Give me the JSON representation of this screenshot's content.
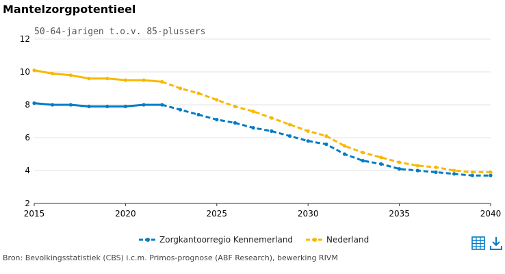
{
  "page": {
    "title": "Mantelzorgpotentieel",
    "source": "Bron: Bevolkingsstatistiek (CBS) i.c.m. Primos-prognose (ABF Research), bewerking RIVM",
    "icons": {
      "table": "table-icon",
      "download": "download-icon"
    },
    "accent_color": "#007bc7"
  },
  "chart_data": {
    "type": "line",
    "title": "",
    "subtitle": "50-64-jarigen t.o.v. 85-plussers",
    "xlabel": "",
    "ylabel": "",
    "xlim": [
      2015,
      2040
    ],
    "ylim": [
      2,
      12
    ],
    "x_ticks": [
      2015,
      2020,
      2025,
      2030,
      2035,
      2040
    ],
    "y_ticks": [
      2,
      4,
      6,
      8,
      10,
      12
    ],
    "grid": "horizontal",
    "legend_position": "bottom",
    "x": [
      2015,
      2016,
      2017,
      2018,
      2019,
      2020,
      2021,
      2022,
      2023,
      2024,
      2025,
      2026,
      2027,
      2028,
      2029,
      2030,
      2031,
      2032,
      2033,
      2034,
      2035,
      2036,
      2037,
      2038,
      2039,
      2040
    ],
    "solid_until": 2022,
    "series": [
      {
        "name": "Zorgkantoorregio Kennemerland",
        "color": "#007bc7",
        "values": [
          8.1,
          8.0,
          8.0,
          7.9,
          7.9,
          7.9,
          8.0,
          8.0,
          7.7,
          7.4,
          7.1,
          6.9,
          6.6,
          6.4,
          6.1,
          5.8,
          5.6,
          5.0,
          4.6,
          4.4,
          4.1,
          4.0,
          3.9,
          3.8,
          3.7,
          3.7
        ]
      },
      {
        "name": "Nederland",
        "color": "#f9b800",
        "values": [
          10.1,
          9.9,
          9.8,
          9.6,
          9.6,
          9.5,
          9.5,
          9.4,
          9.0,
          8.7,
          8.3,
          7.9,
          7.6,
          7.2,
          6.8,
          6.4,
          6.1,
          5.5,
          5.1,
          4.8,
          4.5,
          4.3,
          4.2,
          4.0,
          3.9,
          3.9
        ]
      }
    ]
  }
}
